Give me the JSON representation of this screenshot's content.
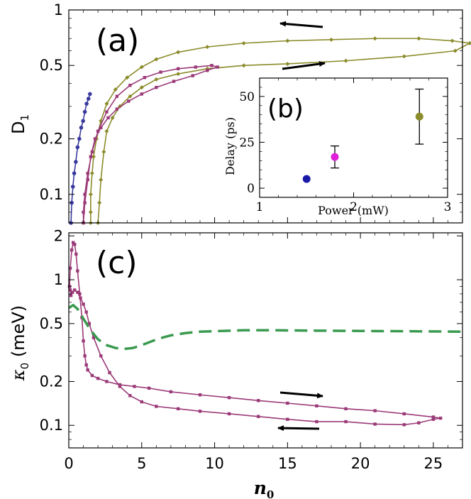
{
  "chart_data": [
    {
      "panel": "(a)",
      "type": "line",
      "xlim": [
        0,
        27
      ],
      "ylim": [
        0.07,
        1
      ],
      "yscale": "log",
      "ylabel": "D",
      "ylabel_sub": "1",
      "yticks": [
        0.1,
        0.2,
        0.5,
        1
      ],
      "ytick_labels": [
        "0.1",
        "0.2",
        "0.5",
        "1"
      ],
      "annotations": [
        "arrow-left-top",
        "arrow-right-top"
      ],
      "series": [
        {
          "color": "#8b8b2b",
          "x": [
            1.5,
            1.5,
            1.5,
            1.6,
            1.7,
            1.9,
            2.2,
            2.6,
            3.2,
            4,
            5,
            6,
            7.5,
            9.5,
            12,
            15,
            18,
            21,
            24,
            26.3,
            27.5,
            26.5,
            23,
            19,
            15,
            12,
            9.5,
            7.5,
            6,
            5,
            4.2,
            3.5,
            3.0,
            2.6,
            2.4,
            2.2,
            2.1,
            2.0
          ],
          "y": [
            0.07,
            0.08,
            0.1,
            0.13,
            0.16,
            0.2,
            0.25,
            0.31,
            0.37,
            0.43,
            0.49,
            0.54,
            0.59,
            0.63,
            0.66,
            0.68,
            0.69,
            0.7,
            0.7,
            0.68,
            0.66,
            0.6,
            0.56,
            0.53,
            0.51,
            0.5,
            0.48,
            0.45,
            0.42,
            0.38,
            0.34,
            0.3,
            0.26,
            0.22,
            0.17,
            0.12,
            0.09,
            0.07
          ]
        },
        {
          "color": "#9b3a78",
          "x": [
            1.0,
            1.0,
            1.1,
            1.3,
            1.6,
            2.0,
            2.6,
            3.3,
            4.2,
            5.2,
            6.3,
            7.5,
            8.7,
            9.8,
            10.2,
            9.5,
            8.5,
            7.2,
            6.0,
            5.0,
            4.1,
            3.3,
            2.7,
            2.2,
            1.8,
            1.5,
            1.3,
            1.1,
            1.0
          ],
          "y": [
            0.07,
            0.08,
            0.1,
            0.13,
            0.17,
            0.22,
            0.28,
            0.34,
            0.39,
            0.43,
            0.46,
            0.48,
            0.49,
            0.5,
            0.49,
            0.47,
            0.44,
            0.41,
            0.38,
            0.35,
            0.32,
            0.29,
            0.26,
            0.23,
            0.2,
            0.16,
            0.12,
            0.09,
            0.07
          ]
        },
        {
          "color": "#3a3a9e",
          "x": [
            0.15,
            0.2,
            0.28,
            0.37,
            0.48,
            0.6,
            0.72,
            0.85,
            0.98,
            1.1,
            1.22,
            1.35,
            1.45
          ],
          "y": [
            0.07,
            0.09,
            0.11,
            0.13,
            0.15,
            0.18,
            0.2,
            0.23,
            0.25,
            0.28,
            0.31,
            0.33,
            0.35
          ]
        }
      ]
    },
    {
      "panel": "(b)",
      "type": "scatter",
      "xlabel": "Power (mW)",
      "ylabel": "Delay (ps)",
      "xlim": [
        1,
        3
      ],
      "ylim": [
        -5,
        60
      ],
      "xticks": [
        1,
        2,
        3
      ],
      "xtick_labels": [
        "1",
        "2",
        "3"
      ],
      "yticks": [
        0,
        25,
        50
      ],
      "ytick_labels": [
        "0",
        "25",
        "50"
      ],
      "points": [
        {
          "x": 1.5,
          "y": 5,
          "err": 0,
          "color": "#1a1aa8"
        },
        {
          "x": 1.8,
          "y": 17,
          "err": 6,
          "color": "#e020d8"
        },
        {
          "x": 2.7,
          "y": 39,
          "err": 15,
          "color": "#8b8b2b"
        }
      ]
    },
    {
      "panel": "(c)",
      "type": "line",
      "xlabel": "n",
      "xlabel_sub": "0",
      "ylabel": "κ",
      "ylabel_sub": "0",
      "ylabel_unit": " (meV)",
      "xlim": [
        0,
        27
      ],
      "ylim": [
        0.07,
        2.1
      ],
      "yscale": "log",
      "xticks": [
        0,
        5,
        10,
        15,
        20,
        25
      ],
      "xtick_labels": [
        "0",
        "5",
        "10",
        "15",
        "20",
        "25"
      ],
      "yticks": [
        0.1,
        0.2,
        0.5,
        1,
        2
      ],
      "ytick_labels": [
        "0.1",
        "0.2",
        "0.5",
        "1",
        "2"
      ],
      "annotations": [
        "arrow-right-bottom",
        "arrow-left-bottom"
      ],
      "series": [
        {
          "style": "markers",
          "color": "#9b3a78",
          "x": [
            0.05,
            0.1,
            0.2,
            0.3,
            0.4,
            0.5,
            0.6,
            0.75,
            0.9,
            1.0,
            1.1,
            1.2,
            1.3,
            1.6,
            2.0,
            2.6,
            3.5,
            4.5,
            5.5,
            7,
            9,
            11,
            13,
            15,
            17,
            19,
            21,
            23,
            25,
            25.5,
            25,
            24,
            23,
            21,
            19,
            17,
            15,
            13,
            11,
            9,
            7.5,
            6,
            5,
            4.2,
            3.5,
            2.8,
            2.2,
            1.7,
            1.4,
            1.2,
            1.0,
            0.8,
            0.6,
            0.4,
            0.25,
            0.15,
            0.1,
            0.05
          ],
          "y": [
            0.9,
            1.2,
            1.6,
            1.8,
            1.75,
            1.5,
            1.15,
            0.8,
            0.55,
            0.38,
            0.3,
            0.26,
            0.24,
            0.22,
            0.21,
            0.2,
            0.19,
            0.185,
            0.18,
            0.17,
            0.162,
            0.155,
            0.148,
            0.142,
            0.136,
            0.13,
            0.126,
            0.12,
            0.114,
            0.112,
            0.11,
            0.104,
            0.101,
            0.102,
            0.106,
            0.106,
            0.11,
            0.115,
            0.12,
            0.125,
            0.13,
            0.135,
            0.145,
            0.16,
            0.185,
            0.23,
            0.3,
            0.4,
            0.5,
            0.6,
            0.68,
            0.75,
            0.82,
            0.85,
            0.82,
            0.78,
            0.85,
            0.9
          ]
        },
        {
          "style": "dashed",
          "color": "#3a9a50",
          "x": [
            0,
            0.3,
            0.6,
            1.0,
            1.5,
            2.0,
            2.6,
            3.2,
            3.8,
            4.4,
            5.0,
            5.6,
            6.2,
            7.0,
            8.0,
            9.0,
            10.5,
            12,
            14,
            17,
            20,
            23,
            27
          ],
          "y": [
            0.64,
            0.67,
            0.63,
            0.54,
            0.45,
            0.39,
            0.355,
            0.34,
            0.335,
            0.34,
            0.355,
            0.375,
            0.395,
            0.415,
            0.43,
            0.44,
            0.445,
            0.45,
            0.45,
            0.447,
            0.445,
            0.443,
            0.44
          ]
        }
      ]
    }
  ]
}
